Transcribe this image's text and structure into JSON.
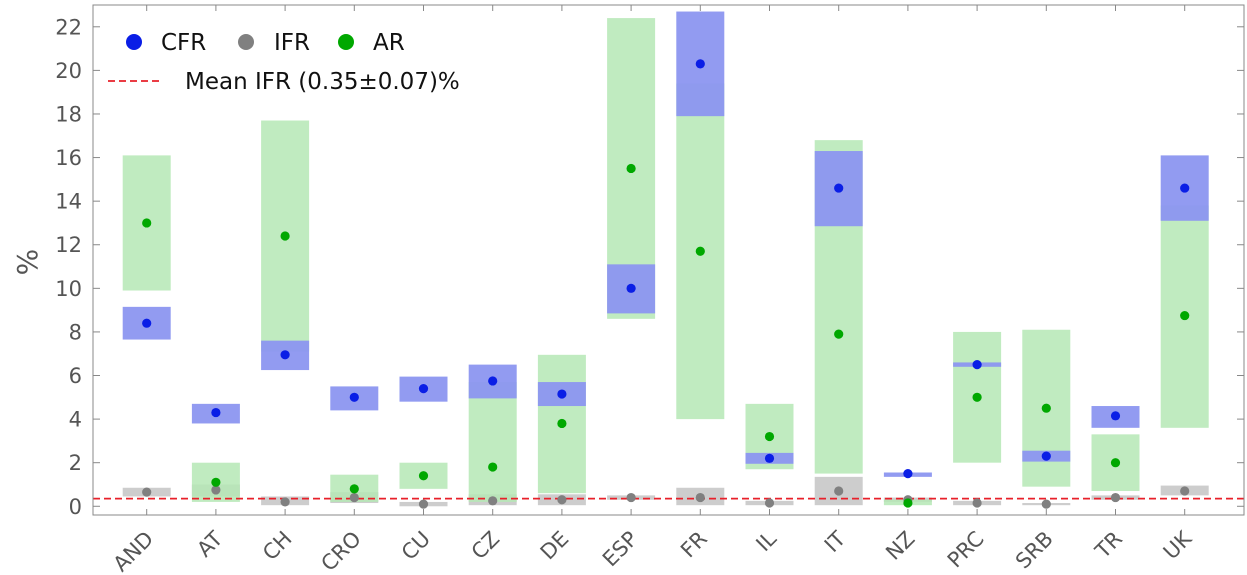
{
  "chart_data": {
    "type": "scatter",
    "title": "",
    "xlabel": "",
    "ylabel": "%",
    "ylim": [
      -0.4,
      23
    ],
    "yticks": [
      0,
      2,
      4,
      6,
      8,
      10,
      12,
      14,
      16,
      18,
      20,
      22
    ],
    "grid": false,
    "legend_position": "top-left",
    "categories": [
      "AND",
      "AT",
      "CH",
      "CRO",
      "CU",
      "CZ",
      "DE",
      "ESP",
      "FR",
      "IL",
      "IT",
      "NZ",
      "PRC",
      "SRB",
      "TR",
      "UK"
    ],
    "series": [
      {
        "name": "CFR",
        "color": "#0a1ee6",
        "band_color": "#8c96f0",
        "values": [
          8.4,
          4.3,
          6.95,
          5.0,
          5.4,
          5.75,
          5.15,
          10.0,
          20.3,
          2.2,
          14.6,
          1.5,
          6.5,
          2.3,
          4.15,
          14.6
        ],
        "low": [
          7.65,
          3.8,
          6.25,
          4.4,
          4.8,
          4.95,
          4.6,
          8.85,
          17.9,
          1.95,
          12.85,
          1.35,
          6.4,
          2.05,
          3.6,
          13.1
        ],
        "high": [
          9.15,
          4.7,
          7.6,
          5.5,
          5.95,
          6.5,
          5.7,
          11.1,
          22.7,
          2.45,
          16.3,
          1.55,
          6.6,
          2.55,
          4.6,
          16.1
        ]
      },
      {
        "name": "IFR",
        "color": "#808080",
        "band_color": "#c4c4c4",
        "values": [
          0.65,
          0.75,
          0.2,
          0.4,
          0.1,
          0.25,
          0.3,
          0.4,
          0.4,
          0.15,
          0.7,
          0.3,
          0.15,
          0.1,
          0.4,
          0.7
        ],
        "low": [
          0.45,
          0.45,
          0.05,
          0.15,
          0.0,
          0.05,
          0.05,
          0.3,
          0.05,
          0.05,
          0.05,
          0.2,
          0.05,
          0.05,
          0.3,
          0.5
        ],
        "high": [
          0.85,
          1.0,
          0.45,
          0.65,
          0.2,
          0.55,
          0.55,
          0.5,
          0.85,
          0.25,
          1.35,
          0.4,
          0.25,
          0.15,
          0.5,
          0.95
        ]
      },
      {
        "name": "AR",
        "color": "#00a800",
        "band_color": "#b5e8b5",
        "values": [
          13.0,
          1.1,
          12.4,
          0.8,
          1.4,
          1.8,
          3.8,
          15.5,
          11.7,
          3.2,
          7.9,
          0.15,
          5.0,
          4.5,
          2.0,
          8.75
        ],
        "low": [
          9.9,
          0.2,
          7.1,
          0.2,
          0.8,
          0.2,
          0.6,
          8.6,
          4.0,
          1.7,
          1.5,
          0.05,
          2.0,
          0.9,
          0.7,
          3.6
        ],
        "high": [
          16.1,
          2.0,
          17.7,
          1.45,
          2.0,
          5.7,
          6.95,
          22.4,
          19.4,
          4.7,
          16.8,
          0.3,
          8.0,
          8.1,
          3.3,
          13.8
        ]
      }
    ],
    "reference_line": {
      "label": "Mean IFR (0.35±0.07)%",
      "value": 0.35,
      "color": "#e8202a",
      "style": "dashed"
    }
  }
}
